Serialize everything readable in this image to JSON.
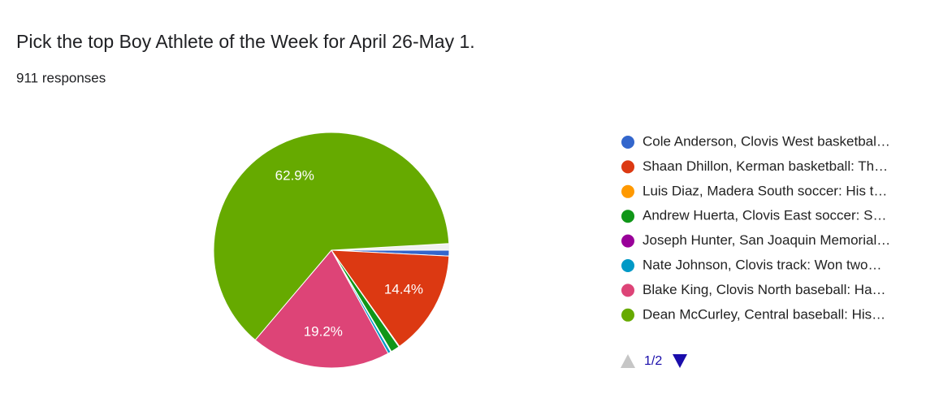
{
  "chart_data": {
    "type": "pie",
    "title": "Pick the top Boy Athlete of the Week for April 26-May 1.",
    "subtitle": "911 responses",
    "categories": [
      "Cole Anderson, Clovis West basketbal…",
      "Shaan Dhillon, Kerman basketball: Th…",
      "Luis Diaz, Madera South soccer: His t…",
      "Andrew Huerta, Clovis East soccer: S…",
      "Joseph Hunter, San Joaquin Memorial…",
      "Nate Johnson, Clovis track: Won two…",
      "Blake King, Clovis North baseball: Ha…",
      "Dean McCurley, Central baseball: His…"
    ],
    "values": [
      0.8,
      14.4,
      0.1,
      1.2,
      0.1,
      0.4,
      19.2,
      62.9
    ],
    "value_labels": [
      null,
      "14.4%",
      null,
      null,
      null,
      null,
      "19.2%",
      "62.9%"
    ],
    "colors": [
      "#3366cc",
      "#dc3912",
      "#ff9900",
      "#109618",
      "#990099",
      "#0099c6",
      "#dd4477",
      "#66aa00"
    ],
    "legend": "right",
    "pager": "1/2"
  }
}
